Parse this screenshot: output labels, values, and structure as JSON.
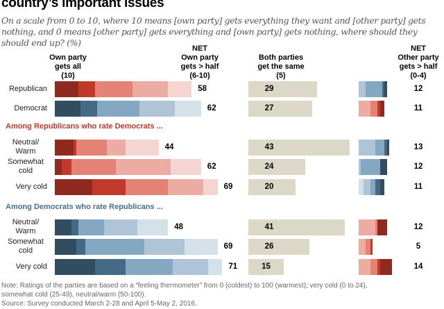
{
  "title": "country’s important issues",
  "subtitle": "On a scale from 0 to 10, where 10 means [own party] gets everything they want and [other party] gets nothing, and 0 means [other party] gets everything and [own party] gets nothing, where should they should end up? (%)",
  "headers": {
    "own_all": [
      "Own party",
      "gets all",
      "(10)"
    ],
    "net_own": [
      "NET",
      "Own party",
      "gets > half",
      "(6-10)"
    ],
    "same": [
      "Both parties",
      "get the same",
      "(5)"
    ],
    "net_other": [
      "NET",
      "Other party",
      "gets > half",
      "(0-4)"
    ]
  },
  "sections": [
    {
      "label": "Among Republicans who rate Democrats ...",
      "color": "#c0392b"
    },
    {
      "label": "Among Democrats who rate Republicans ...",
      "color": "#4a6d8c"
    }
  ],
  "colors": {
    "red": [
      "#8e2a1f",
      "#c0392b",
      "#e38275",
      "#ecaba3",
      "#f5d5d1"
    ],
    "blue": [
      "#324d60",
      "#456a85",
      "#84a8c2",
      "#afc4d7",
      "#d5e1e9"
    ],
    "same": "#dcd8c8"
  },
  "chart_data": {
    "type": "bar",
    "title": "country’s important issues",
    "unit": "%",
    "own_segments_legend": [
      "10",
      "9",
      "8",
      "7",
      "6"
    ],
    "other_segments_legend": [
      "4",
      "3",
      "2",
      "1",
      "0"
    ],
    "rows": [
      {
        "label": "Republican",
        "palette": "red",
        "own_segments": [
          10,
          7,
          16,
          15,
          10
        ],
        "net_own": 58,
        "same": 29,
        "other_segments": [
          3,
          7,
          1,
          1
        ],
        "other_palette": "blue",
        "net_other": 12
      },
      {
        "label": "Democrat",
        "palette": "blue",
        "own_segments": [
          11,
          7,
          18,
          15,
          11
        ],
        "net_own": 62,
        "same": 27,
        "other_segments": [
          5,
          3,
          1,
          2
        ],
        "other_palette": "red",
        "net_other": 11
      },
      {
        "label": "Neutral/ Warm",
        "section": 0,
        "palette": "red",
        "own_segments": [
          8,
          1,
          13,
          8,
          14
        ],
        "net_own": 44,
        "same": 43,
        "other_segments": [
          7,
          4,
          1,
          1
        ],
        "other_palette": "blue",
        "net_other": 13
      },
      {
        "label": "Somewhat cold",
        "section": 0,
        "palette": "red",
        "own_segments": [
          3,
          4,
          19,
          23,
          13
        ],
        "net_own": 62,
        "same": 24,
        "other_segments": [
          1,
          8,
          0,
          3
        ],
        "other_palette": "blue",
        "net_other": 12
      },
      {
        "label": "Very cold",
        "section": 0,
        "palette": "red",
        "own_segments": [
          16,
          14,
          18,
          15,
          6
        ],
        "net_own": 69,
        "same": 20,
        "other_segments": [
          2,
          3,
          2,
          2,
          2
        ],
        "other_palette": "blue",
        "net_other": 11
      },
      {
        "label": "Neutral/ Warm",
        "section": 1,
        "palette": "blue",
        "own_segments": [
          7,
          3,
          11,
          14,
          13
        ],
        "net_own": 48,
        "same": 41,
        "other_segments": [
          7,
          1,
          0,
          4
        ],
        "other_palette": "red",
        "net_other": 12
      },
      {
        "label": "Somewhat cold",
        "section": 1,
        "palette": "blue",
        "own_segments": [
          9,
          4,
          25,
          17,
          14
        ],
        "net_own": 69,
        "same": 26,
        "other_segments": [
          3,
          2,
          1,
          0
        ],
        "other_palette": "red",
        "net_other": 5
      },
      {
        "label": "Very cold",
        "section": 1,
        "palette": "blue",
        "own_segments": [
          17,
          13,
          20,
          15,
          6
        ],
        "net_own": 71,
        "same": 15,
        "other_segments": [
          5,
          3,
          1,
          5
        ],
        "other_palette": "red",
        "net_other": 14
      }
    ]
  },
  "note": [
    "Note: Ratings of the parties are based on a “feeling thermometer” from 0 (coldest) to 100 (warmest); very cold (0 to 24),",
    "somewhat cold (25-49), neutral/warm (50-100).",
    "Source: Survey conducted March 2-28 and April 5-May 2, 2016."
  ]
}
